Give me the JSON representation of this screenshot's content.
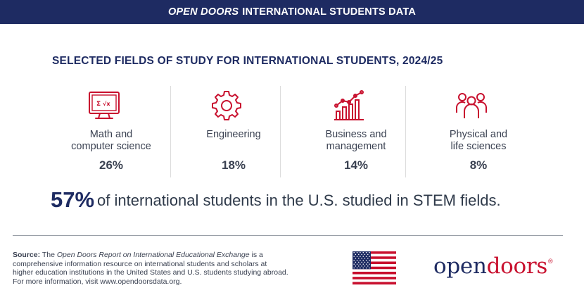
{
  "banner": {
    "brand": "OPEN DOORS",
    "title": "INTERNATIONAL STUDENTS DATA"
  },
  "heading": "SELECTED FIELDS OF STUDY FOR INTERNATIONAL STUDENTS, 2024/25",
  "fields": [
    {
      "label_line1": "Math and",
      "label_line2": "computer science",
      "percent": "26%",
      "icon": "math-computer-icon"
    },
    {
      "label_line1": "Engineering",
      "label_line2": "",
      "percent": "18%",
      "icon": "gear-icon"
    },
    {
      "label_line1": "Business and",
      "label_line2": "management",
      "percent": "14%",
      "icon": "bar-chart-growth-icon"
    },
    {
      "label_line1": "Physical and",
      "label_line2": "life sciences",
      "percent": "8%",
      "icon": "people-group-icon"
    }
  ],
  "stem": {
    "percent": "57%",
    "text": "of international students in the U.S. studied in STEM fields."
  },
  "source": {
    "label": "Source:",
    "pre": "The",
    "report_title": "Open Doors Report on International Educational Exchange",
    "line1_tail": "is a",
    "line2": "comprehensive information resource on international students and scholars at",
    "line3": "higher education institutions in the United States and U.S. students studying abroad.",
    "line4": "For more information, visit www.opendoorsdata.org."
  },
  "logo": {
    "part1": "open",
    "part2": "doors",
    "mark": "®"
  },
  "colors": {
    "navy": "#1e2b62",
    "red": "#c8102e",
    "text": "#3b4252"
  }
}
